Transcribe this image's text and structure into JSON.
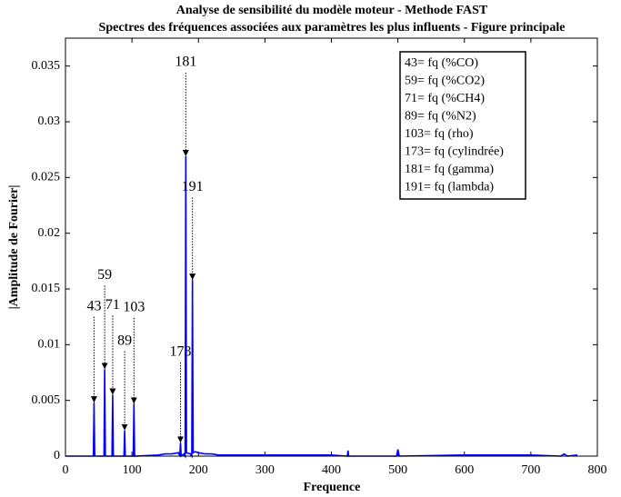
{
  "chart_data": {
    "type": "line",
    "title": "Analyse de sensibilité du modèle moteur - Methode FAST",
    "subtitle": "Spectres des fréquences associées aux paramètres les plus influents - Figure principale",
    "xlabel": "Frequence",
    "ylabel": "|Amplitude de Fourier|",
    "xlim": [
      0,
      800
    ],
    "xticks": [
      0,
      100,
      200,
      300,
      400,
      500,
      600,
      700,
      800
    ],
    "ylim": [
      0,
      0.0375
    ],
    "yticks": [
      0,
      0.005,
      0.01,
      0.015,
      0.02,
      0.025,
      0.03,
      0.035
    ],
    "grid": false,
    "series": [
      {
        "color": "#0000ff",
        "x": [
          0,
          40,
          42,
          43,
          44,
          56,
          58,
          59,
          60,
          68,
          70,
          71,
          72,
          86,
          88,
          89,
          90,
          100,
          102,
          103,
          104,
          140,
          150,
          160,
          170,
          172,
          173,
          174,
          178,
          180,
          181,
          182,
          188,
          190,
          191,
          192,
          195,
          200,
          210,
          220,
          230,
          300,
          400,
          424,
          425,
          426,
          498,
          500,
          502,
          600,
          700,
          745,
          750,
          755,
          770
        ],
        "values": [
          0,
          0,
          0,
          0.0048,
          0,
          0,
          0,
          0.0078,
          0,
          0,
          0,
          0.0055,
          0,
          0,
          0,
          0.0023,
          0,
          0,
          0,
          0.0047,
          0,
          0.0001,
          0.0002,
          0.0002,
          0.0003,
          0,
          0.0012,
          0,
          0.0002,
          0,
          0.0269,
          0.0003,
          0.0002,
          0,
          0.0158,
          0.0003,
          0.0004,
          0.0003,
          0.0002,
          0.0002,
          0.0001,
          0.0001,
          0.0001,
          0,
          0.0005,
          0,
          0,
          0.0006,
          0,
          0.0001,
          0.0001,
          0,
          0.0002,
          0,
          0.0001
        ]
      }
    ],
    "annotations": [
      {
        "text": "43",
        "x": 43,
        "y": 0.0134
      },
      {
        "text": "59",
        "x": 59,
        "y": 0.0162
      },
      {
        "text": "71",
        "x": 71,
        "y": 0.0135
      },
      {
        "text": "89",
        "x": 89,
        "y": 0.0103
      },
      {
        "text": "103",
        "x": 103,
        "y": 0.0133
      },
      {
        "text": "173",
        "x": 173,
        "y": 0.0093
      },
      {
        "text": "181",
        "x": 181,
        "y": 0.0353
      },
      {
        "text": "191",
        "x": 191,
        "y": 0.0241
      }
    ],
    "legend_corner": "upper right",
    "legend_text": [
      "43= fq (%CO)",
      "59= fq (%CO2)",
      "71= fq (%CH4)",
      "89= fq (%N2)",
      "103= fq (rho)",
      "173= fq (cylindrée)",
      "181= fq (gamma)",
      "191= fq (lambda)"
    ]
  }
}
